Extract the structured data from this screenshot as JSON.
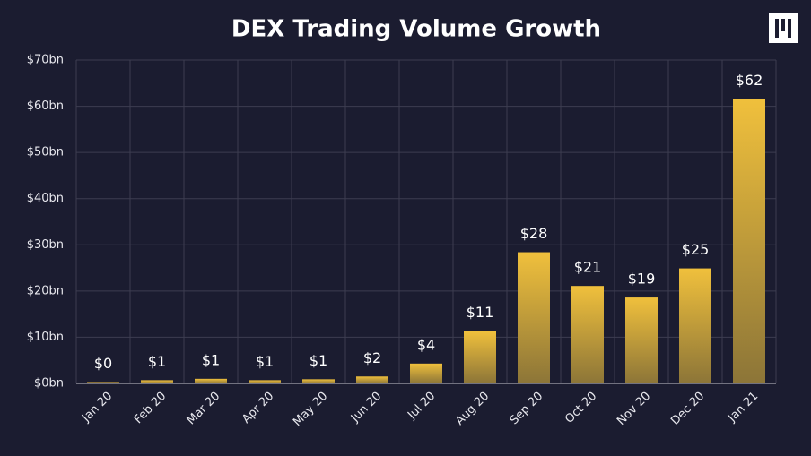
{
  "chart_data": {
    "type": "bar",
    "title": "DEX Trading Volume Growth",
    "categories": [
      "Jan 20",
      "Feb 20",
      "Mar 20",
      "Apr 20",
      "May 20",
      "Jun 20",
      "Jul 20",
      "Aug 20",
      "Sep 20",
      "Oct 20",
      "Nov 20",
      "Dec 20",
      "Jan 21"
    ],
    "values": [
      0.3,
      0.7,
      1.0,
      0.7,
      0.9,
      1.5,
      4.3,
      11.3,
      28.4,
      21.1,
      18.6,
      24.9,
      61.6
    ],
    "value_labels": [
      "$0",
      "$1",
      "$1",
      "$1",
      "$1",
      "$2",
      "$4",
      "$11",
      "$28",
      "$21",
      "$19",
      "$25",
      "$62"
    ],
    "color": "#f0c03c",
    "ylim": [
      0,
      70
    ],
    "yticks": [
      {
        "value": 0,
        "label": "$0bn"
      },
      {
        "value": 10,
        "label": "$10bn"
      },
      {
        "value": 20,
        "label": "$20bn"
      },
      {
        "value": 30,
        "label": "$30bn"
      },
      {
        "value": 40,
        "label": "$40bn"
      },
      {
        "value": 50,
        "label": "$50bn"
      },
      {
        "value": 60,
        "label": "$60bn"
      },
      {
        "value": 70,
        "label": "$70bn"
      }
    ],
    "grid": true
  }
}
